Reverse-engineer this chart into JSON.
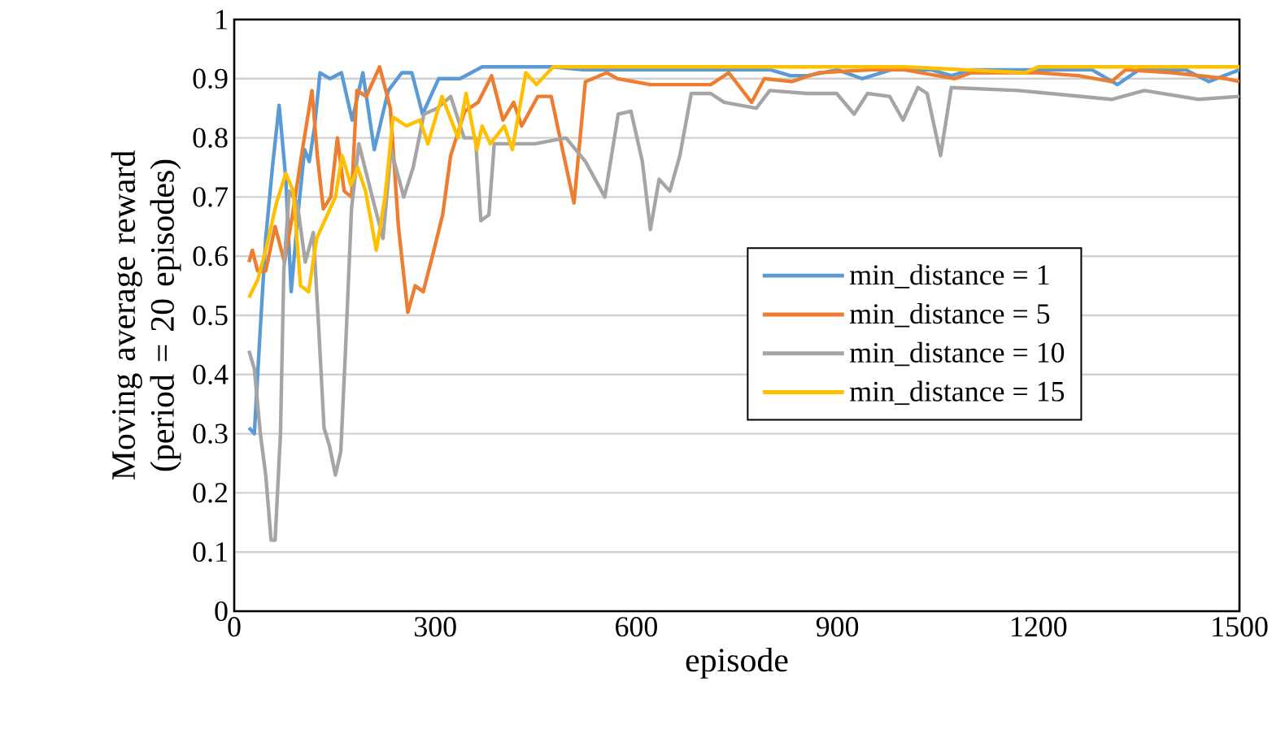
{
  "chart_data": {
    "type": "line",
    "xlabel": "episode",
    "ylabel": "Moving average reward (period = 20 episodes)",
    "xlim": [
      0,
      1500
    ],
    "xticks": [
      0,
      300,
      600,
      900,
      1200,
      1500
    ],
    "ylim": [
      0,
      1
    ],
    "yticks": [
      0,
      0.1,
      0.2,
      0.3,
      0.4,
      0.5,
      0.6,
      0.7,
      0.8,
      0.9,
      1
    ],
    "grid": "y",
    "legend": "right",
    "marker": "none",
    "line_style": "solid",
    "series": [
      {
        "name": "min_distance = 1",
        "color": "#5b9bd5",
        "x": [
          22,
          30,
          39,
          47,
          57,
          67,
          77,
          85,
          95,
          105,
          112,
          120,
          128,
          143,
          160,
          176,
          192,
          209,
          230,
          250,
          265,
          281,
          305,
          337,
          370,
          435,
          475,
          520,
          600,
          700,
          800,
          830,
          855,
          900,
          937,
          980,
          1040,
          1070,
          1100,
          1200,
          1280,
          1318,
          1350,
          1420,
          1454,
          1500
        ],
        "values": [
          0.31,
          0.3,
          0.48,
          0.63,
          0.75,
          0.855,
          0.73,
          0.54,
          0.67,
          0.78,
          0.76,
          0.82,
          0.91,
          0.9,
          0.91,
          0.83,
          0.91,
          0.78,
          0.88,
          0.91,
          0.91,
          0.84,
          0.9,
          0.9,
          0.92,
          0.92,
          0.92,
          0.915,
          0.915,
          0.915,
          0.915,
          0.905,
          0.905,
          0.915,
          0.9,
          0.915,
          0.915,
          0.905,
          0.915,
          0.915,
          0.915,
          0.89,
          0.915,
          0.915,
          0.895,
          0.915
        ]
      },
      {
        "name": "min_distance = 5",
        "color": "#ed7d31",
        "x": [
          22,
          27,
          35,
          47,
          61,
          75,
          87,
          99,
          116,
          124,
          133,
          144,
          154,
          164,
          175,
          183,
          197,
          217,
          233,
          245,
          259,
          270,
          282,
          298,
          311,
          323,
          344,
          364,
          384,
          401,
          417,
          429,
          453,
          473,
          488,
          507,
          524,
          556,
          572,
          621,
          654,
          711,
          738,
          772,
          791,
          832,
          872,
          950,
          1000,
          1075,
          1100,
          1200,
          1260,
          1309,
          1330,
          1400,
          1480,
          1500
        ],
        "values": [
          0.59,
          0.61,
          0.575,
          0.575,
          0.65,
          0.59,
          0.67,
          0.76,
          0.88,
          0.77,
          0.68,
          0.7,
          0.8,
          0.71,
          0.7,
          0.88,
          0.87,
          0.92,
          0.85,
          0.65,
          0.505,
          0.55,
          0.54,
          0.61,
          0.67,
          0.77,
          0.845,
          0.86,
          0.905,
          0.83,
          0.86,
          0.82,
          0.87,
          0.87,
          0.79,
          0.69,
          0.895,
          0.91,
          0.9,
          0.89,
          0.89,
          0.89,
          0.91,
          0.86,
          0.9,
          0.895,
          0.91,
          0.915,
          0.915,
          0.9,
          0.91,
          0.91,
          0.905,
          0.895,
          0.915,
          0.91,
          0.9,
          0.895
        ]
      },
      {
        "name": "min_distance = 10",
        "color": "#a5a5a5",
        "x": [
          22,
          30,
          39,
          47,
          55,
          61,
          69,
          74,
          82,
          94,
          106,
          118,
          126,
          134,
          142,
          151,
          159,
          166,
          175,
          186,
          206,
          222,
          234,
          253,
          267,
          283,
          303,
          323,
          343,
          360,
          368,
          380,
          388,
          417,
          449,
          495,
          524,
          553,
          573,
          592,
          609,
          621,
          634,
          650,
          665,
          682,
          711,
          731,
          779,
          799,
          855,
          899,
          925,
          945,
          978,
          998,
          1020,
          1034,
          1054,
          1070,
          1170,
          1309,
          1358,
          1439,
          1500
        ],
        "values": [
          0.44,
          0.41,
          0.3,
          0.23,
          0.12,
          0.12,
          0.3,
          0.575,
          0.71,
          0.69,
          0.59,
          0.64,
          0.48,
          0.31,
          0.28,
          0.23,
          0.27,
          0.44,
          0.68,
          0.79,
          0.7,
          0.63,
          0.78,
          0.7,
          0.75,
          0.84,
          0.85,
          0.87,
          0.8,
          0.8,
          0.66,
          0.67,
          0.79,
          0.79,
          0.79,
          0.8,
          0.76,
          0.7,
          0.84,
          0.845,
          0.76,
          0.645,
          0.73,
          0.71,
          0.77,
          0.875,
          0.875,
          0.86,
          0.85,
          0.88,
          0.875,
          0.875,
          0.84,
          0.875,
          0.87,
          0.83,
          0.885,
          0.875,
          0.77,
          0.885,
          0.88,
          0.865,
          0.88,
          0.865,
          0.87
        ]
      },
      {
        "name": "min_distance = 15",
        "color": "#ffc000",
        "x": [
          22,
          35,
          47,
          63,
          77,
          88,
          99,
          111,
          123,
          139,
          151,
          161,
          174,
          184,
          196,
          212,
          225,
          237,
          257,
          277,
          289,
          310,
          334,
          346,
          362,
          370,
          382,
          403,
          415,
          435,
          451,
          476,
          496,
          600,
          800,
          1000,
          1180,
          1200,
          1400,
          1500
        ],
        "values": [
          0.53,
          0.56,
          0.61,
          0.69,
          0.74,
          0.71,
          0.55,
          0.54,
          0.63,
          0.67,
          0.7,
          0.77,
          0.72,
          0.75,
          0.71,
          0.61,
          0.7,
          0.835,
          0.82,
          0.83,
          0.79,
          0.87,
          0.8,
          0.875,
          0.78,
          0.82,
          0.79,
          0.82,
          0.78,
          0.91,
          0.89,
          0.92,
          0.92,
          0.92,
          0.92,
          0.92,
          0.91,
          0.92,
          0.92,
          0.92
        ]
      }
    ]
  }
}
